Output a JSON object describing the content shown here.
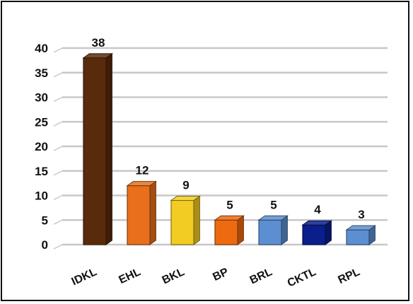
{
  "chart_data": {
    "type": "bar",
    "title": "",
    "xlabel": "",
    "ylabel": "",
    "categories": [
      "IDKL",
      "EHL",
      "BKL",
      "BP",
      "BRL",
      "CKTL",
      "RPL"
    ],
    "values": [
      38,
      12,
      9,
      5,
      5,
      4,
      3
    ],
    "data_labels": [
      "38",
      "12",
      "9",
      "5",
      "5",
      "4",
      "3"
    ],
    "bar_colors": [
      "#5a2a0c",
      "#e8701c",
      "#f2cc22",
      "#ee6a10",
      "#5b8fd1",
      "#0a1e8c",
      "#5b8fd1"
    ],
    "yticks": [
      "0",
      "5",
      "10",
      "15",
      "20",
      "25",
      "30",
      "35",
      "40"
    ],
    "ylim": [
      0,
      40
    ],
    "grid": true,
    "legend": "none",
    "style": "3d-column"
  }
}
